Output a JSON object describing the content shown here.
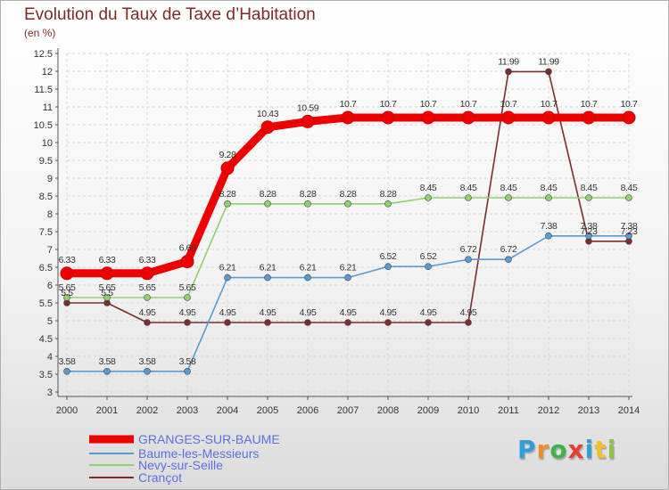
{
  "title": "Evolution du Taux de Taxe d’Habitation",
  "subtitle": "(en %)",
  "logo": {
    "text": "Proxiti",
    "colors": [
      "#2e9fd8",
      "#f28c28",
      "#3fb34a",
      "#e63f2f",
      "#2e9fd8",
      "#f2c12e",
      "#8bc34a"
    ]
  },
  "chart_data": {
    "type": "line",
    "title": "Evolution du Taux de Taxe d’Habitation",
    "ylabel": "(en %)",
    "xlabel": "",
    "x": [
      "2000",
      "2001",
      "2002",
      "2003",
      "2004",
      "2005",
      "2006",
      "2007",
      "2008",
      "2009",
      "2010",
      "2011",
      "2012",
      "2013",
      "2014"
    ],
    "ylim": [
      3,
      12.5
    ],
    "yticks": [
      "3",
      "3.5",
      "4",
      "4.5",
      "5",
      "5.5",
      "6",
      "6.5",
      "7",
      "7.5",
      "8",
      "8.5",
      "9",
      "9.5",
      "10",
      "10.5",
      "11",
      "11.5",
      "12",
      "12.5"
    ],
    "grid": true,
    "legend": "bottom-left",
    "series": [
      {
        "name": "GRANGES-SUR-BAUME",
        "color": "#ee0000",
        "values": [
          6.33,
          6.33,
          6.33,
          6.66,
          9.28,
          10.43,
          10.59,
          10.7,
          10.7,
          10.7,
          10.7,
          10.7,
          10.7,
          10.7,
          10.7
        ],
        "labels": [
          "6.33",
          "6.33",
          "6.33",
          "6.66",
          "9.28",
          "10.43",
          "10.59",
          "10.7",
          "10.7",
          "10.7",
          "10.7",
          "10.7",
          "10.7",
          "10.7",
          "10.7"
        ]
      },
      {
        "name": "Baume-les-Messieurs",
        "color": "#5b9bd5",
        "values": [
          3.58,
          3.58,
          3.58,
          3.58,
          6.21,
          6.21,
          6.21,
          6.21,
          6.52,
          6.52,
          6.72,
          6.72,
          7.38,
          7.38,
          7.38
        ],
        "labels": [
          "3.58",
          "3.58",
          "3.58",
          "3.58",
          "6.21",
          "6.21",
          "6.21",
          "6.21",
          "6.52",
          "6.52",
          "6.72",
          "6.72",
          "7.38",
          "7.38",
          "7.38"
        ]
      },
      {
        "name": "Nevy-sur-Seille",
        "color": "#8fd16a",
        "values": [
          5.65,
          5.65,
          5.65,
          5.65,
          8.28,
          8.28,
          8.28,
          8.28,
          8.28,
          8.45,
          8.45,
          8.45,
          8.45,
          8.45,
          8.45
        ],
        "labels": [
          "5.65",
          "5.65",
          "5.65",
          "5.65",
          "8.28",
          "8.28",
          "8.28",
          "8.28",
          "8.28",
          "8.45",
          "8.45",
          "8.45",
          "8.45",
          "8.45",
          "8.45"
        ]
      },
      {
        "name": "Crançot",
        "color": "#7b2d2d",
        "values": [
          5.5,
          5.5,
          4.95,
          4.95,
          4.95,
          4.95,
          4.95,
          4.95,
          4.95,
          4.95,
          4.95,
          11.99,
          11.99,
          7.23,
          7.23
        ],
        "labels": [
          "5.5",
          "5.5",
          "4.95",
          "4.95",
          "4.95",
          "4.95",
          "4.95",
          "4.95",
          "4.95",
          "4.95",
          "4.95",
          "11.99",
          "11.99",
          "7.23",
          "7.23"
        ]
      }
    ]
  }
}
